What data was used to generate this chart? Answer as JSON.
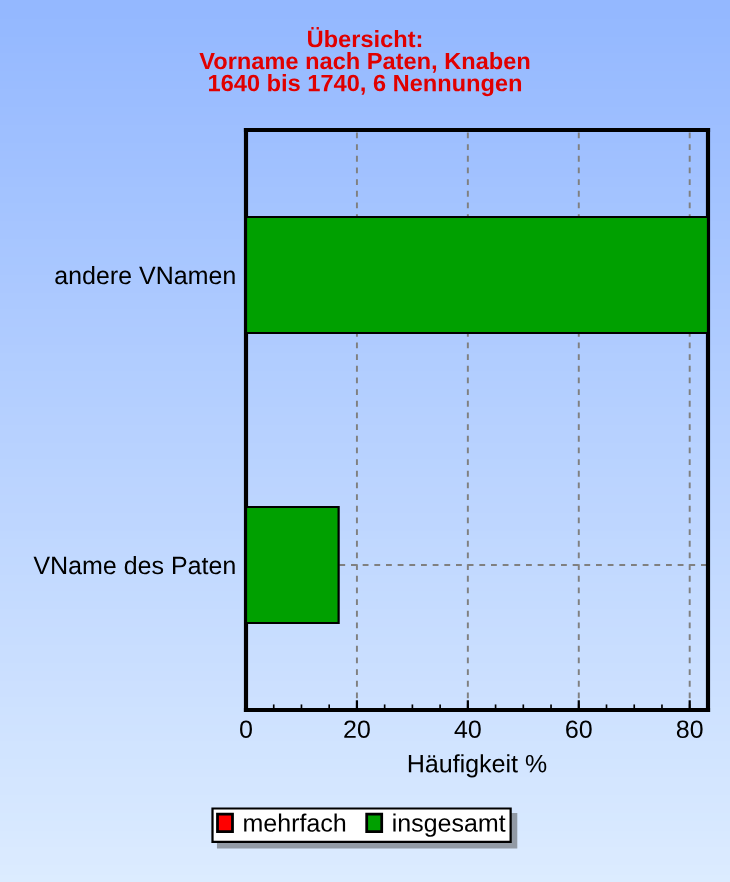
{
  "chart_data": {
    "type": "bar",
    "orientation": "horizontal",
    "title": "Übersicht:\nVorname nach Paten, Knaben\n1640 bis 1740, 6 Nennungen",
    "xlabel": "Häufigkeit %",
    "categories": [
      "andere VNamen",
      "VName des Paten"
    ],
    "series": [
      {
        "name": "mehrfach",
        "color": "#ff0000",
        "values": [
          null,
          null
        ]
      },
      {
        "name": "insgesamt",
        "color": "#00a000",
        "values": [
          83.3,
          16.7
        ]
      }
    ],
    "xlim": [
      0,
      83.3
    ],
    "xticks": [
      0,
      20,
      40,
      60,
      80
    ],
    "grid": true,
    "legend": "bottom"
  }
}
